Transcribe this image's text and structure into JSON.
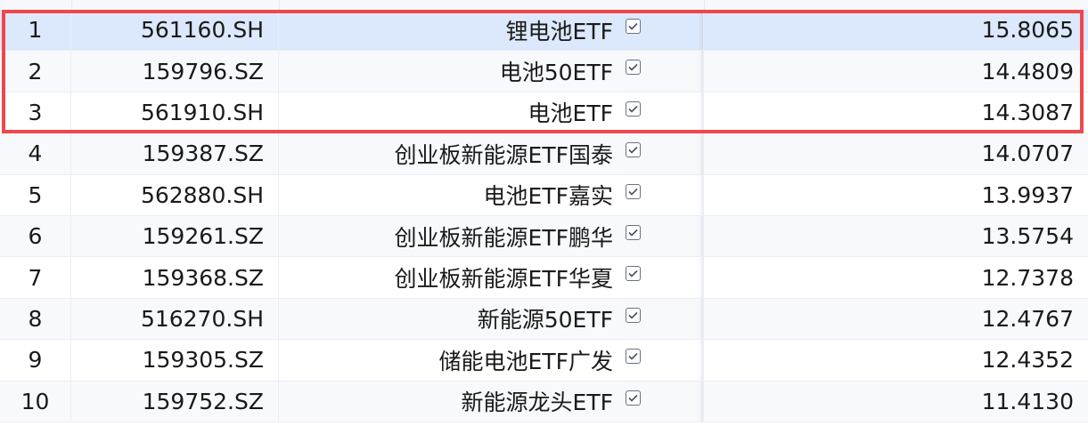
{
  "table": {
    "rows": [
      {
        "index": "1",
        "code": "561160.SH",
        "name": "锂电池ETF",
        "checked": true,
        "value": "15.8065",
        "selected": true
      },
      {
        "index": "2",
        "code": "159796.SZ",
        "name": "电池50ETF",
        "checked": true,
        "value": "14.4809"
      },
      {
        "index": "3",
        "code": "561910.SH",
        "name": "电池ETF",
        "checked": true,
        "value": "14.3087"
      },
      {
        "index": "4",
        "code": "159387.SZ",
        "name": "创业板新能源ETF国泰",
        "checked": true,
        "value": "14.0707"
      },
      {
        "index": "5",
        "code": "562880.SH",
        "name": "电池ETF嘉实",
        "checked": true,
        "value": "13.9937"
      },
      {
        "index": "6",
        "code": "159261.SZ",
        "name": "创业板新能源ETF鹏华",
        "checked": true,
        "value": "13.5754"
      },
      {
        "index": "7",
        "code": "159368.SZ",
        "name": "创业板新能源ETF华夏",
        "checked": true,
        "value": "12.7378"
      },
      {
        "index": "8",
        "code": "516270.SH",
        "name": "新能源50ETF",
        "checked": true,
        "value": "12.4767"
      },
      {
        "index": "9",
        "code": "159305.SZ",
        "name": "储能电池ETF广发",
        "checked": true,
        "value": "12.4352"
      },
      {
        "index": "10",
        "code": "159752.SZ",
        "name": "新能源龙头ETF",
        "checked": true,
        "value": "11.4130"
      }
    ]
  },
  "highlight": {
    "color": "#f0474d",
    "rows": [
      1,
      2,
      3
    ]
  },
  "colors": {
    "selected_row": "#dce8fb",
    "checkbox_border": "#6b6f86"
  }
}
